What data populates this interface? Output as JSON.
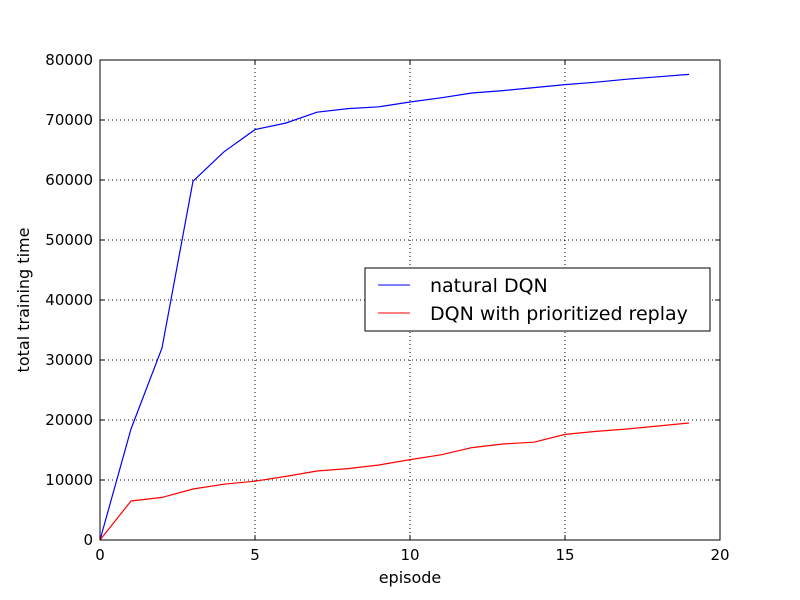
{
  "chart_data": {
    "type": "line",
    "title": "",
    "xlabel": "episode",
    "ylabel": "total training time",
    "xlim": [
      0,
      20
    ],
    "ylim": [
      0,
      80000
    ],
    "xticks": [
      0,
      5,
      10,
      15,
      20
    ],
    "yticks": [
      0,
      10000,
      20000,
      30000,
      40000,
      50000,
      60000,
      70000,
      80000
    ],
    "grid": true,
    "legend_position": "center-right",
    "x": [
      0,
      1,
      2,
      3,
      4,
      5,
      6,
      7,
      8,
      9,
      10,
      11,
      12,
      13,
      14,
      15,
      16,
      17,
      18,
      19
    ],
    "series": [
      {
        "name": "natural DQN",
        "color": "#0000ff",
        "values": [
          0,
          18500,
          32000,
          59800,
          64700,
          68400,
          69500,
          71300,
          71900,
          72200,
          73000,
          73700,
          74500,
          74900,
          75400,
          75900,
          76300,
          76800,
          77200,
          77600
        ]
      },
      {
        "name": "DQN with prioritized replay",
        "color": "#ff0000",
        "values": [
          0,
          6500,
          7100,
          8500,
          9300,
          9800,
          10600,
          11500,
          11900,
          12500,
          13400,
          14200,
          15400,
          16000,
          16300,
          17600,
          18100,
          18500,
          19000,
          19500
        ]
      }
    ]
  }
}
